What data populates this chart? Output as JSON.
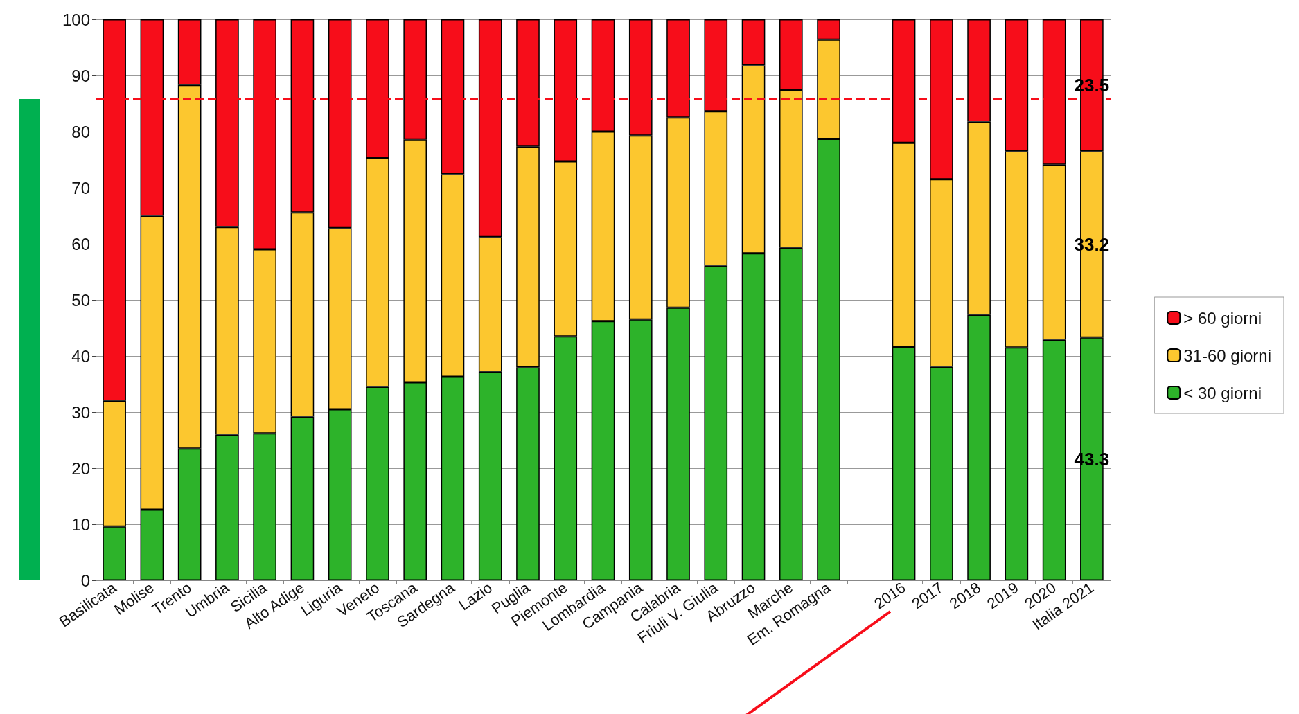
{
  "chart_data": {
    "type": "bar",
    "stacked": true,
    "categories": [
      "Basilicata",
      "Molise",
      "Trento",
      "Umbria",
      "Sicilia",
      "Alto Adige",
      "Liguria",
      "Veneto",
      "Toscana",
      "Sardegna",
      "Lazio",
      "Puglia",
      "Piemonte",
      "Lombardia",
      "Campania",
      "Calabria",
      "Friuli V. Giulia",
      "Abruzzo",
      "Marche",
      "Em. Romagna",
      null,
      "2016",
      "2017",
      "2018",
      "2019",
      "2020",
      "Italia 2021"
    ],
    "series": [
      {
        "name": "< 30 giorni",
        "color": "#2db32a",
        "values": [
          9.6,
          12.6,
          23.5,
          26,
          26.2,
          29.2,
          30.5,
          34.5,
          35.3,
          36.3,
          37.2,
          38,
          43.5,
          46.2,
          46.5,
          48.6,
          56.1,
          58.3,
          59.3,
          78.7,
          null,
          41.6,
          38.1,
          47.3,
          41.5,
          42.9,
          43.3
        ],
        "value_labels": [
          null,
          null,
          null,
          null,
          null,
          null,
          null,
          null,
          null,
          null,
          null,
          null,
          null,
          null,
          null,
          null,
          null,
          null,
          null,
          null,
          null,
          null,
          null,
          null,
          null,
          null,
          "43.3"
        ]
      },
      {
        "name": "31-60 giorni",
        "color": "#fcc72f",
        "values": [
          22.4,
          52.4,
          64.8,
          37,
          32.8,
          36.4,
          32.3,
          40.8,
          43.3,
          36.1,
          24,
          39.3,
          31.2,
          33.8,
          32.8,
          33.9,
          27.5,
          33.5,
          28.1,
          17.7,
          null,
          36.4,
          33.4,
          34.5,
          35,
          31.2,
          33.2
        ],
        "value_labels": [
          null,
          null,
          null,
          null,
          null,
          null,
          null,
          null,
          null,
          null,
          null,
          null,
          null,
          null,
          null,
          null,
          null,
          null,
          null,
          null,
          null,
          null,
          null,
          null,
          null,
          null,
          "33.2"
        ]
      },
      {
        "name": "> 60 giorni",
        "color": "#f70d1a",
        "values": [
          68,
          35,
          11.7,
          37,
          41,
          34.4,
          37.2,
          24.7,
          21.4,
          27.6,
          38.8,
          22.7,
          25.3,
          20,
          20.7,
          17.5,
          16.4,
          8.2,
          12.6,
          3.6,
          null,
          22,
          28.5,
          18.2,
          23.5,
          25.9,
          23.5
        ],
        "value_labels": [
          null,
          null,
          null,
          null,
          null,
          null,
          null,
          null,
          null,
          null,
          null,
          null,
          null,
          null,
          null,
          null,
          null,
          null,
          null,
          null,
          null,
          null,
          null,
          null,
          null,
          null,
          "23.5"
        ]
      }
    ],
    "ylim": [
      0,
      100
    ],
    "yticks": [
      0,
      10,
      20,
      30,
      40,
      50,
      60,
      70,
      80,
      90,
      100
    ],
    "grid": "y",
    "ref_lines": [
      {
        "axis": "y",
        "value": 85.8,
        "color": "#f70d1a",
        "line_style": "dashed"
      }
    ],
    "legend": "right"
  }
}
